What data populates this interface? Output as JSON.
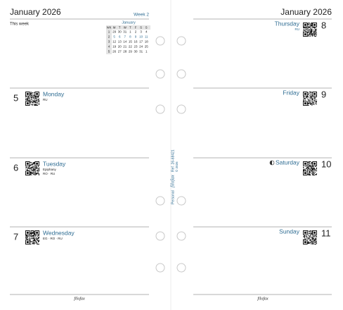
{
  "left_page": {
    "header": {
      "month": "January 2026",
      "week": "Week 2"
    },
    "this_week": "This week",
    "mini_calendar": {
      "title": "January",
      "columns": [
        "WK",
        "M",
        "T",
        "W",
        "T",
        "F",
        "S",
        "S"
      ],
      "rows": [
        [
          "1",
          "29",
          "30",
          "31",
          "1",
          "2",
          "3",
          "4"
        ],
        [
          "2",
          "5",
          "6",
          "7",
          "8",
          "9",
          "10",
          "11"
        ],
        [
          "3",
          "12",
          "13",
          "14",
          "15",
          "16",
          "17",
          "18"
        ],
        [
          "4",
          "19",
          "20",
          "21",
          "22",
          "23",
          "24",
          "25"
        ],
        [
          "5",
          "26",
          "27",
          "28",
          "29",
          "30",
          "31",
          "1"
        ]
      ]
    },
    "days": [
      {
        "number": "5",
        "name": "Monday",
        "notes": [
          "RU"
        ]
      },
      {
        "number": "6",
        "name": "Tuesday",
        "notes": [
          "Epiphany",
          "RO · RU"
        ]
      },
      {
        "number": "7",
        "name": "Wednesday",
        "notes": [
          "EG · RO · RU"
        ]
      }
    ],
    "footer": "filofax"
  },
  "spine": {
    "size": "Personal",
    "brand": "filofax",
    "ref": "Ref. 26-68421",
    "copyright": "© 2026"
  },
  "right_page": {
    "header": {
      "month": "January 2026"
    },
    "days": [
      {
        "number": "8",
        "name": "Thursday",
        "notes": [
          "RU"
        ]
      },
      {
        "number": "9",
        "name": "Friday",
        "notes": []
      },
      {
        "number": "10",
        "name": "Saturday",
        "notes": []
      },
      {
        "number": "11",
        "name": "Sunday",
        "notes": []
      }
    ],
    "footer": "filofax"
  }
}
